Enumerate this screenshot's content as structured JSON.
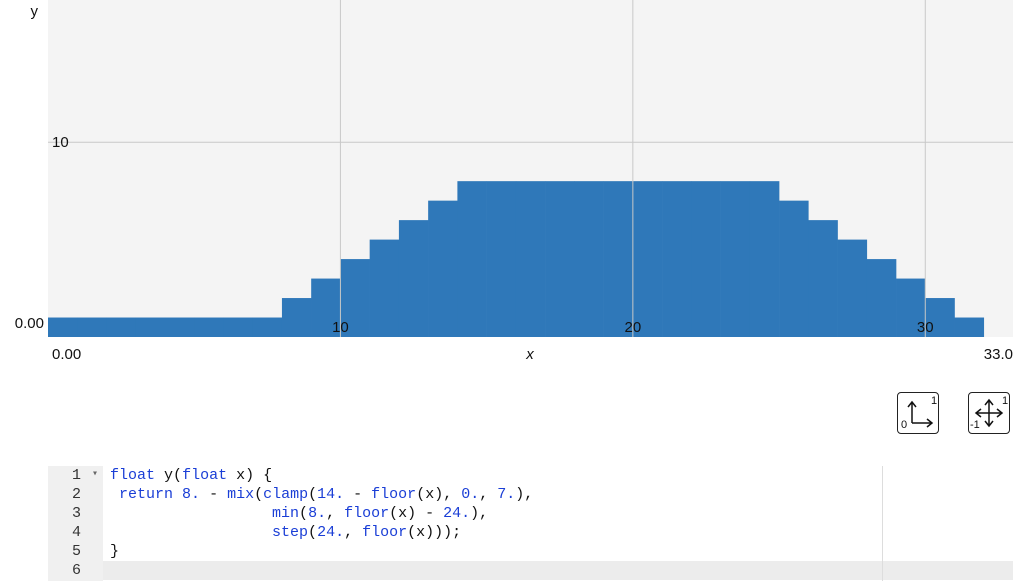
{
  "chart_data": {
    "type": "step",
    "x_label": "x",
    "y_label": "y",
    "x": [
      0,
      1,
      2,
      3,
      4,
      5,
      6,
      7,
      8,
      9,
      10,
      11,
      12,
      13,
      14,
      15,
      16,
      17,
      18,
      19,
      20,
      21,
      22,
      23,
      24,
      25,
      26,
      27,
      28,
      29,
      30,
      31,
      32
    ],
    "series": [
      {
        "color": "#2f78b9",
        "values": [
          1,
          1,
          1,
          1,
          1,
          1,
          1,
          1,
          2,
          3,
          4,
          5,
          6,
          7,
          8,
          8,
          8,
          8,
          8,
          8,
          8,
          8,
          8,
          8,
          8,
          7,
          6,
          5,
          4,
          3,
          2,
          1,
          0
        ]
      }
    ],
    "xlim": [
      0,
      33
    ],
    "xticks": [
      {
        "value": 0,
        "label": "0.00"
      },
      10,
      20,
      30,
      {
        "value": 33,
        "label": "33.0"
      }
    ],
    "ylim": [
      0,
      17.3
    ],
    "yticks": [
      {
        "value": 0,
        "label": "0.00"
      },
      10
    ],
    "grid": true
  },
  "controls": [
    {
      "labels": [
        "0",
        "1"
      ]
    },
    {
      "labels": [
        "-1",
        "1"
      ]
    }
  ],
  "editor": {
    "line_numbers": [
      "1",
      "2",
      "3",
      "4",
      "5",
      "6"
    ],
    "lines": [
      "float y(float x) {",
      " return 8. - mix(clamp(14. - floor(x), 0., 7.),",
      "                  min(8., floor(x) - 24.),",
      "                  step(24., floor(x)));",
      "}"
    ]
  }
}
